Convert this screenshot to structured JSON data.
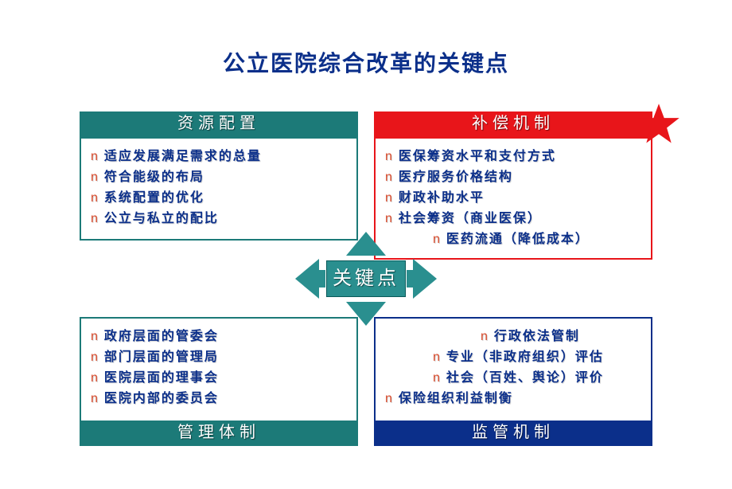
{
  "title": "公立医院综合改革的关键点",
  "title_color": "#0b2f8a",
  "hub": {
    "label": "关键点",
    "bg": "#2a8f8f",
    "arrow_color": "#2a8f8f"
  },
  "bullet_char": "n",
  "bullet_color": "#d94a2b",
  "item_text_color": "#0b2f8a",
  "star_color": "#e8151a",
  "quadrants": {
    "tl": {
      "header": "资源配置",
      "header_bg": "#1c7a78",
      "border_color": "#1c7a78",
      "header_pos": "top",
      "items": [
        {
          "text": "适应发展满足需求的总量",
          "indent": 0
        },
        {
          "text": "符合能级的布局",
          "indent": 0
        },
        {
          "text": "系统配置的优化",
          "indent": 0
        },
        {
          "text": "公立与私立的配比",
          "indent": 0
        }
      ]
    },
    "tr": {
      "header": "补偿机制",
      "header_bg": "#e8151a",
      "border_color": "#e8151a",
      "header_pos": "top",
      "items": [
        {
          "text": "医保筹资水平和支付方式",
          "indent": 0
        },
        {
          "text": "医疗服务价格结构",
          "indent": 0
        },
        {
          "text": "财政补助水平",
          "indent": 0
        },
        {
          "text": "社会筹资（商业医保）",
          "indent": 0
        },
        {
          "text": "医药流通（降低成本）",
          "indent": 1
        }
      ]
    },
    "bl": {
      "header": "管理体制",
      "header_bg": "#1c7a78",
      "border_color": "#1c7a78",
      "header_pos": "bottom",
      "items": [
        {
          "text": "政府层面的管委会",
          "indent": 0
        },
        {
          "text": "部门层面的管理局",
          "indent": 0
        },
        {
          "text": "医院层面的理事会",
          "indent": 0
        },
        {
          "text": "医院内部的委员会",
          "indent": 0
        }
      ]
    },
    "br": {
      "header": "监管机制",
      "header_bg": "#0b2f8a",
      "border_color": "#0b2f8a",
      "header_pos": "bottom",
      "items": [
        {
          "text": "行政依法管制",
          "indent": 2
        },
        {
          "text": "专业（非政府组织）评估",
          "indent": 1
        },
        {
          "text": "社会（百姓、舆论）评价",
          "indent": 1
        },
        {
          "text": "保险组织利益制衡",
          "indent": 0
        }
      ]
    }
  }
}
